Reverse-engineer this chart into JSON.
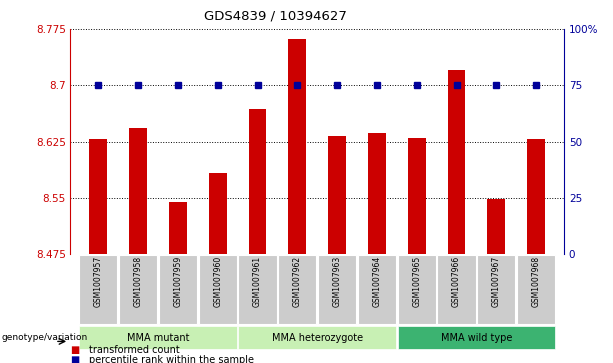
{
  "title": "GDS4839 / 10394627",
  "samples": [
    "GSM1007957",
    "GSM1007958",
    "GSM1007959",
    "GSM1007960",
    "GSM1007961",
    "GSM1007962",
    "GSM1007963",
    "GSM1007964",
    "GSM1007965",
    "GSM1007966",
    "GSM1007967",
    "GSM1007968"
  ],
  "red_values": [
    8.628,
    8.643,
    8.544,
    8.583,
    8.668,
    8.762,
    8.632,
    8.636,
    8.63,
    8.72,
    8.548,
    8.628
  ],
  "blue_values": [
    75,
    75,
    75,
    75,
    75,
    75,
    75,
    75,
    75,
    75,
    75,
    75
  ],
  "ylim_left": [
    8.475,
    8.775
  ],
  "ylim_right": [
    0,
    100
  ],
  "yticks_left": [
    8.475,
    8.55,
    8.625,
    8.7,
    8.775
  ],
  "ytick_labels_left": [
    "8.475",
    "8.55",
    "8.625",
    "8.7",
    "8.775"
  ],
  "yticks_right": [
    0,
    25,
    50,
    75,
    100
  ],
  "ytick_labels_right": [
    "0",
    "25",
    "50",
    "75",
    "100%"
  ],
  "groups_info": [
    {
      "label": "MMA mutant",
      "start": 0,
      "end": 3,
      "color": "#C8F0B4"
    },
    {
      "label": "MMA heterozygote",
      "start": 4,
      "end": 7,
      "color": "#C8F0B4"
    },
    {
      "label": "MMA wild type",
      "start": 8,
      "end": 11,
      "color": "#3CB371"
    }
  ],
  "genotype_label": "genotype/variation",
  "bar_color": "#CC0000",
  "dot_color": "#000099",
  "bg_color": "#CCCCCC",
  "legend_red_label": "transformed count",
  "legend_blue_label": "percentile rank within the sample",
  "base": 8.475
}
